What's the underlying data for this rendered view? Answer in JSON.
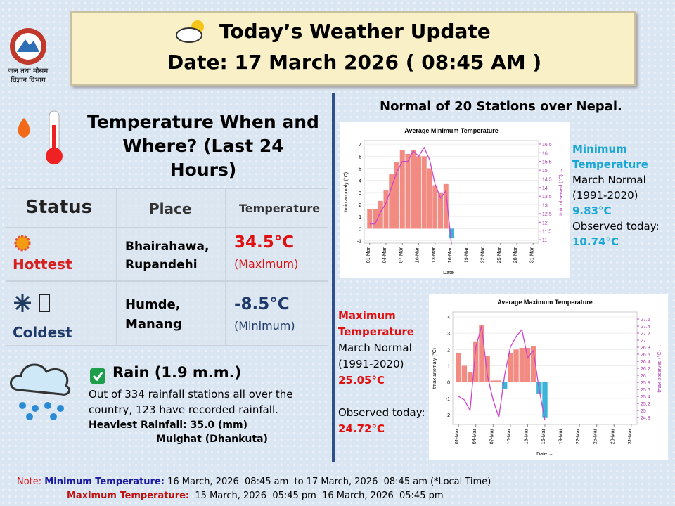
{
  "header": {
    "title": "Today’s Weather Update",
    "date": "Date: 17 March 2026 ( 08:45 AM )"
  },
  "logo_text": [
    "जल तथा मौसम",
    "विज्ञान विभाग"
  ],
  "temperature": {
    "title": "Temperature When and Where? (Last 24 Hours)",
    "columns": [
      "Status",
      "Place",
      "Temperature"
    ],
    "rows": [
      {
        "status": "Hottest",
        "place": "Bhairahawa, Rupandehi",
        "value": "34.5°C",
        "kind": "(Maximum)"
      },
      {
        "status": "Coldest",
        "place": "Humde, Manang",
        "value": "-8.5°C",
        "kind": "(Minimum)"
      }
    ]
  },
  "rain": {
    "title": "Rain (1.9 m.m.)",
    "text": "Out of 334 rainfall stations all over the country, 123 have recorded rainfall.",
    "heaviest": "Heaviest Rainfall: 35.0 (mm)",
    "station": "Mulghat (Dhankuta)"
  },
  "normals": {
    "title": "Normal of 20 Stations over Nepal.",
    "min": {
      "name": "Minimum Temperature",
      "period": "March Normal (1991-2020)",
      "normal": "9.83°C",
      "observed_label": "Observed today:",
      "observed": "10.74°C"
    },
    "max": {
      "name": "Maximum Temperature",
      "period": "March Normal (1991-2020)",
      "normal": "25.05°C",
      "observed_label": "Observed today:",
      "observed": "24.72°C"
    }
  },
  "charts": [
    {
      "type": "bar",
      "title": "Average Minimum Temperature",
      "xlabel": "Date →",
      "ylabel": "tmin anomaly (°C)",
      "y2label": "tmin observed (°C) →",
      "x": [
        1,
        2,
        3,
        4,
        5,
        6,
        7,
        8,
        9,
        10,
        11,
        12,
        13,
        14,
        15,
        16
      ],
      "xlim": [
        0,
        32
      ],
      "xticks": [
        {
          "value": 1,
          "label": "01-Mar"
        },
        {
          "value": 4,
          "label": "04-Mar"
        },
        {
          "value": 7,
          "label": "07-Mar"
        },
        {
          "value": 10,
          "label": "10-Mar"
        },
        {
          "value": 13,
          "label": "13-Mar"
        },
        {
          "value": 16,
          "label": "16-Mar"
        },
        {
          "value": 19,
          "label": "19-Mar"
        },
        {
          "value": 22,
          "label": "22-Mar"
        },
        {
          "value": 25,
          "label": "25-Mar"
        },
        {
          "value": 28,
          "label": "28-Mar"
        },
        {
          "value": 31,
          "label": "31-Mar"
        }
      ],
      "ylim": [
        -1.2,
        7.3
      ],
      "yticks": [
        -1,
        0,
        1,
        2,
        3,
        4,
        5,
        6,
        7
      ],
      "y2lim": [
        10.8,
        16.7
      ],
      "y2ticks": [
        11,
        11.5,
        12,
        12.5,
        13,
        13.5,
        14,
        14.5,
        15,
        15.5,
        16,
        16.5
      ],
      "series": [
        {
          "type": "bar",
          "color": "#f28b82",
          "negative_color": "#3bb4d8",
          "values": [
            1.6,
            1.6,
            2.3,
            3.2,
            4.5,
            5.5,
            6.5,
            6.2,
            6.5,
            6,
            6,
            5,
            3.6,
            3,
            3.7,
            -0.8
          ]
        },
        {
          "type": "line",
          "axis": "y2",
          "color": "#cc44cc",
          "values": [
            11.9,
            11.9,
            12.6,
            13.1,
            14.0,
            14.9,
            15.5,
            15.5,
            16.1,
            15.8,
            16.3,
            15.6,
            14.2,
            13.4,
            13.8,
            10.74
          ]
        }
      ]
    },
    {
      "type": "bar",
      "title": "Average Maximum Temperature",
      "xlabel": "Date →",
      "ylabel": "tmax anomaly (°C)",
      "y2label": "tmax observed (°C) →",
      "x": [
        1,
        2,
        3,
        4,
        5,
        6,
        7,
        8,
        9,
        10,
        11,
        12,
        13,
        14,
        15,
        16
      ],
      "xlim": [
        0,
        32
      ],
      "xticks": [
        {
          "value": 1,
          "label": "01-Mar"
        },
        {
          "value": 4,
          "label": "04-Mar"
        },
        {
          "value": 7,
          "label": "07-Mar"
        },
        {
          "value": 10,
          "label": "10-Mar"
        },
        {
          "value": 13,
          "label": "13-Mar"
        },
        {
          "value": 16,
          "label": "16-Mar"
        },
        {
          "value": 19,
          "label": "19-Mar"
        },
        {
          "value": 22,
          "label": "22-Mar"
        },
        {
          "value": 25,
          "label": "25-Mar"
        },
        {
          "value": 28,
          "label": "28-Mar"
        },
        {
          "value": 31,
          "label": "31-Mar"
        }
      ],
      "ylim": [
        -2.6,
        4.3
      ],
      "yticks": [
        -2,
        -1,
        0,
        1,
        2,
        3,
        4
      ],
      "y2lim": [
        24.6,
        27.8
      ],
      "y2ticks": [
        24.8,
        25,
        25.2,
        25.4,
        25.6,
        25.8,
        26,
        26.2,
        26.4,
        26.6,
        26.8,
        27,
        27.2,
        27.4,
        27.6
      ],
      "series": [
        {
          "type": "bar",
          "color": "#f28b82",
          "negative_color": "#3bb4d8",
          "values": [
            1.8,
            1.0,
            0.6,
            2.5,
            3.5,
            1.6,
            0.1,
            0.1,
            -0.4,
            1.8,
            2.0,
            2.1,
            2.1,
            2.2,
            -0.7,
            -2.2
          ]
        },
        {
          "type": "line",
          "axis": "y2",
          "color": "#cc44cc",
          "values": [
            25.4,
            25.3,
            25.0,
            26.8,
            27.4,
            26.0,
            25.3,
            24.8,
            26.0,
            26.8,
            27.1,
            27.3,
            26.5,
            26.7,
            25.6,
            24.72
          ]
        }
      ]
    }
  ],
  "notes": {
    "note": "Note:",
    "min_label": "Minimum Temperature:",
    "min_period": "16 March, 2026  08:45 am  to 17 March, 2026  08:45 am (*Local Time)",
    "max_label": "Maximum Temperature:",
    "max_period": "15 March, 2026  05:45 pm  16 March, 2026  05:45 pm"
  }
}
